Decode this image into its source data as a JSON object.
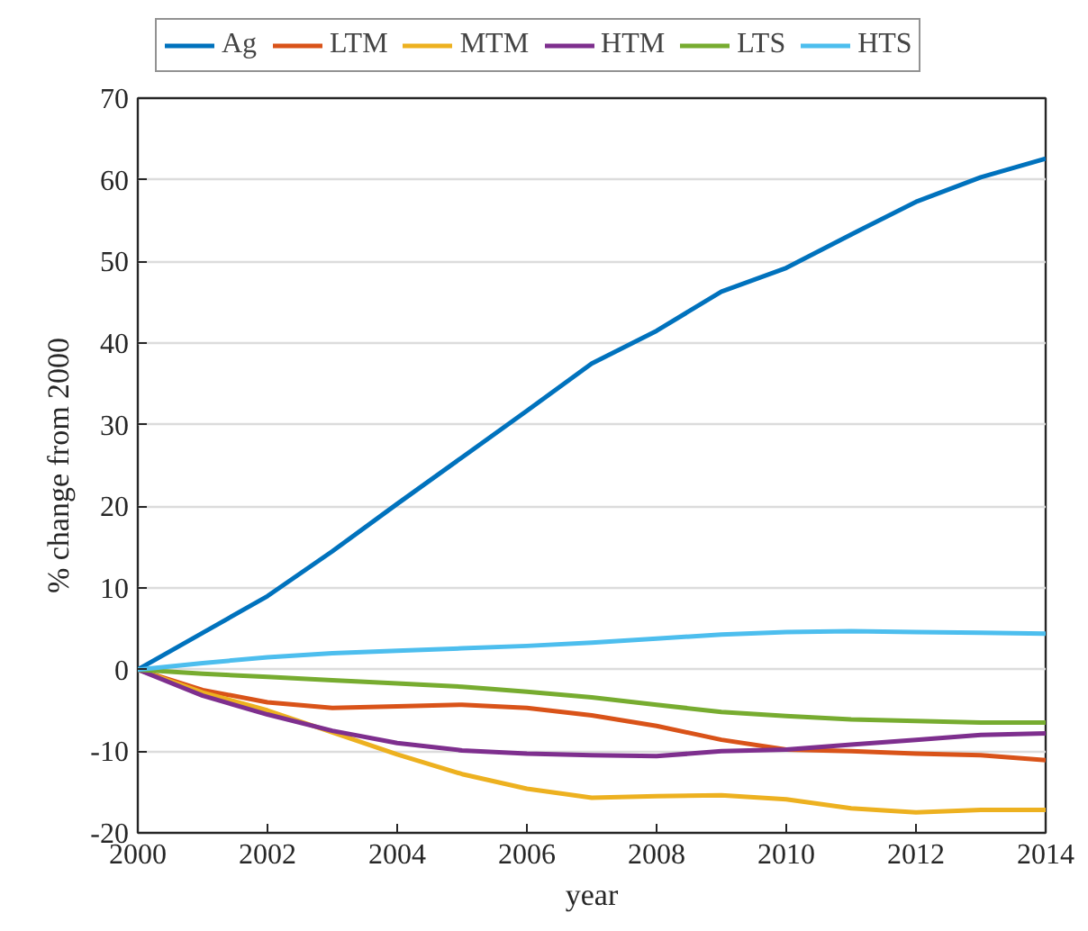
{
  "chart_data": {
    "type": "line",
    "xlabel": "year",
    "ylabel": "% change from 2000",
    "x": [
      2000,
      2001,
      2002,
      2003,
      2004,
      2005,
      2006,
      2007,
      2008,
      2009,
      2010,
      2011,
      2012,
      2013,
      2014
    ],
    "series": [
      {
        "name": "Ag",
        "color": "#0072bd",
        "values": [
          0,
          4.5,
          9,
          14.5,
          20.3,
          26,
          31.7,
          37.5,
          41.5,
          46.3,
          49.2,
          53.3,
          57.3,
          60.3,
          62.6
        ]
      },
      {
        "name": "LTM",
        "color": "#d95319",
        "values": [
          0,
          -2.5,
          -4.0,
          -4.7,
          -4.5,
          -4.3,
          -4.7,
          -5.6,
          -6.9,
          -8.6,
          -9.8,
          -10.0,
          -10.3,
          -10.5,
          -11.1
        ]
      },
      {
        "name": "MTM",
        "color": "#edb120",
        "values": [
          0,
          -2.8,
          -5.0,
          -7.7,
          -10.4,
          -12.8,
          -14.6,
          -15.7,
          -15.5,
          -15.4,
          -15.9,
          -17.0,
          -17.5,
          -17.2,
          -17.2
        ]
      },
      {
        "name": "HTM",
        "color": "#7e2f8e",
        "values": [
          0,
          -3.2,
          -5.5,
          -7.5,
          -9.0,
          -9.9,
          -10.3,
          -10.5,
          -10.6,
          -10.0,
          -9.8,
          -9.2,
          -8.6,
          -8.0,
          -7.8
        ]
      },
      {
        "name": "LTS",
        "color": "#77ac30",
        "values": [
          0,
          -0.5,
          -0.9,
          -1.3,
          -1.7,
          -2.1,
          -2.7,
          -3.4,
          -4.3,
          -5.2,
          -5.7,
          -6.1,
          -6.3,
          -6.5,
          -6.5
        ]
      },
      {
        "name": "HTS",
        "color": "#4dbeee",
        "values": [
          0,
          0.8,
          1.5,
          2.0,
          2.3,
          2.6,
          2.9,
          3.3,
          3.8,
          4.3,
          4.6,
          4.7,
          4.6,
          4.5,
          4.4
        ]
      }
    ],
    "xlim": [
      2000,
      2014
    ],
    "xticks": [
      2000,
      2002,
      2004,
      2006,
      2008,
      2010,
      2012,
      2014
    ],
    "ylim": [
      -20,
      70
    ],
    "yticks": [
      -20,
      -10,
      0,
      10,
      20,
      30,
      40,
      50,
      60,
      70
    ],
    "grid": "y",
    "legend": "top",
    "line_style": "solid",
    "marker": "none"
  }
}
